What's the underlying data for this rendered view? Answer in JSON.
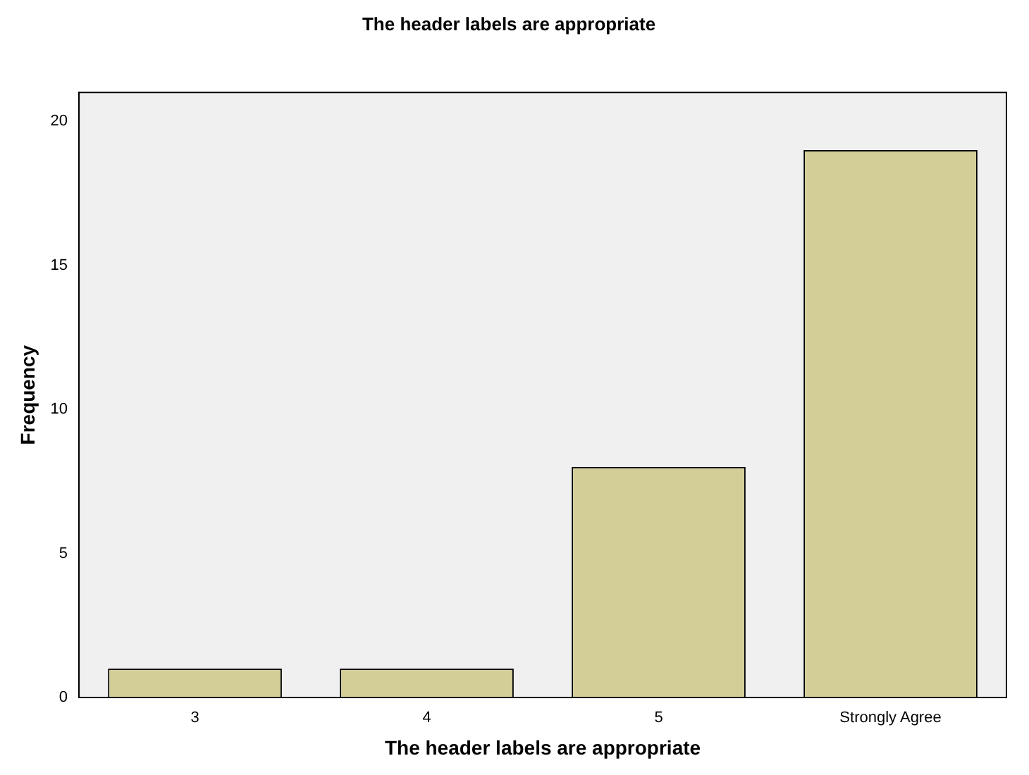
{
  "chart_data": {
    "type": "bar",
    "title": "The header labels are appropriate",
    "xlabel": "The header labels are appropriate",
    "ylabel": "Frequency",
    "categories": [
      "3",
      "4",
      "5",
      "Strongly Agree"
    ],
    "values": [
      1,
      1,
      8,
      19
    ],
    "color": "#d3ce98",
    "ylim": [
      0,
      21
    ],
    "yticks": [
      0,
      5,
      10,
      15,
      20
    ],
    "grid": false,
    "legend": false
  }
}
